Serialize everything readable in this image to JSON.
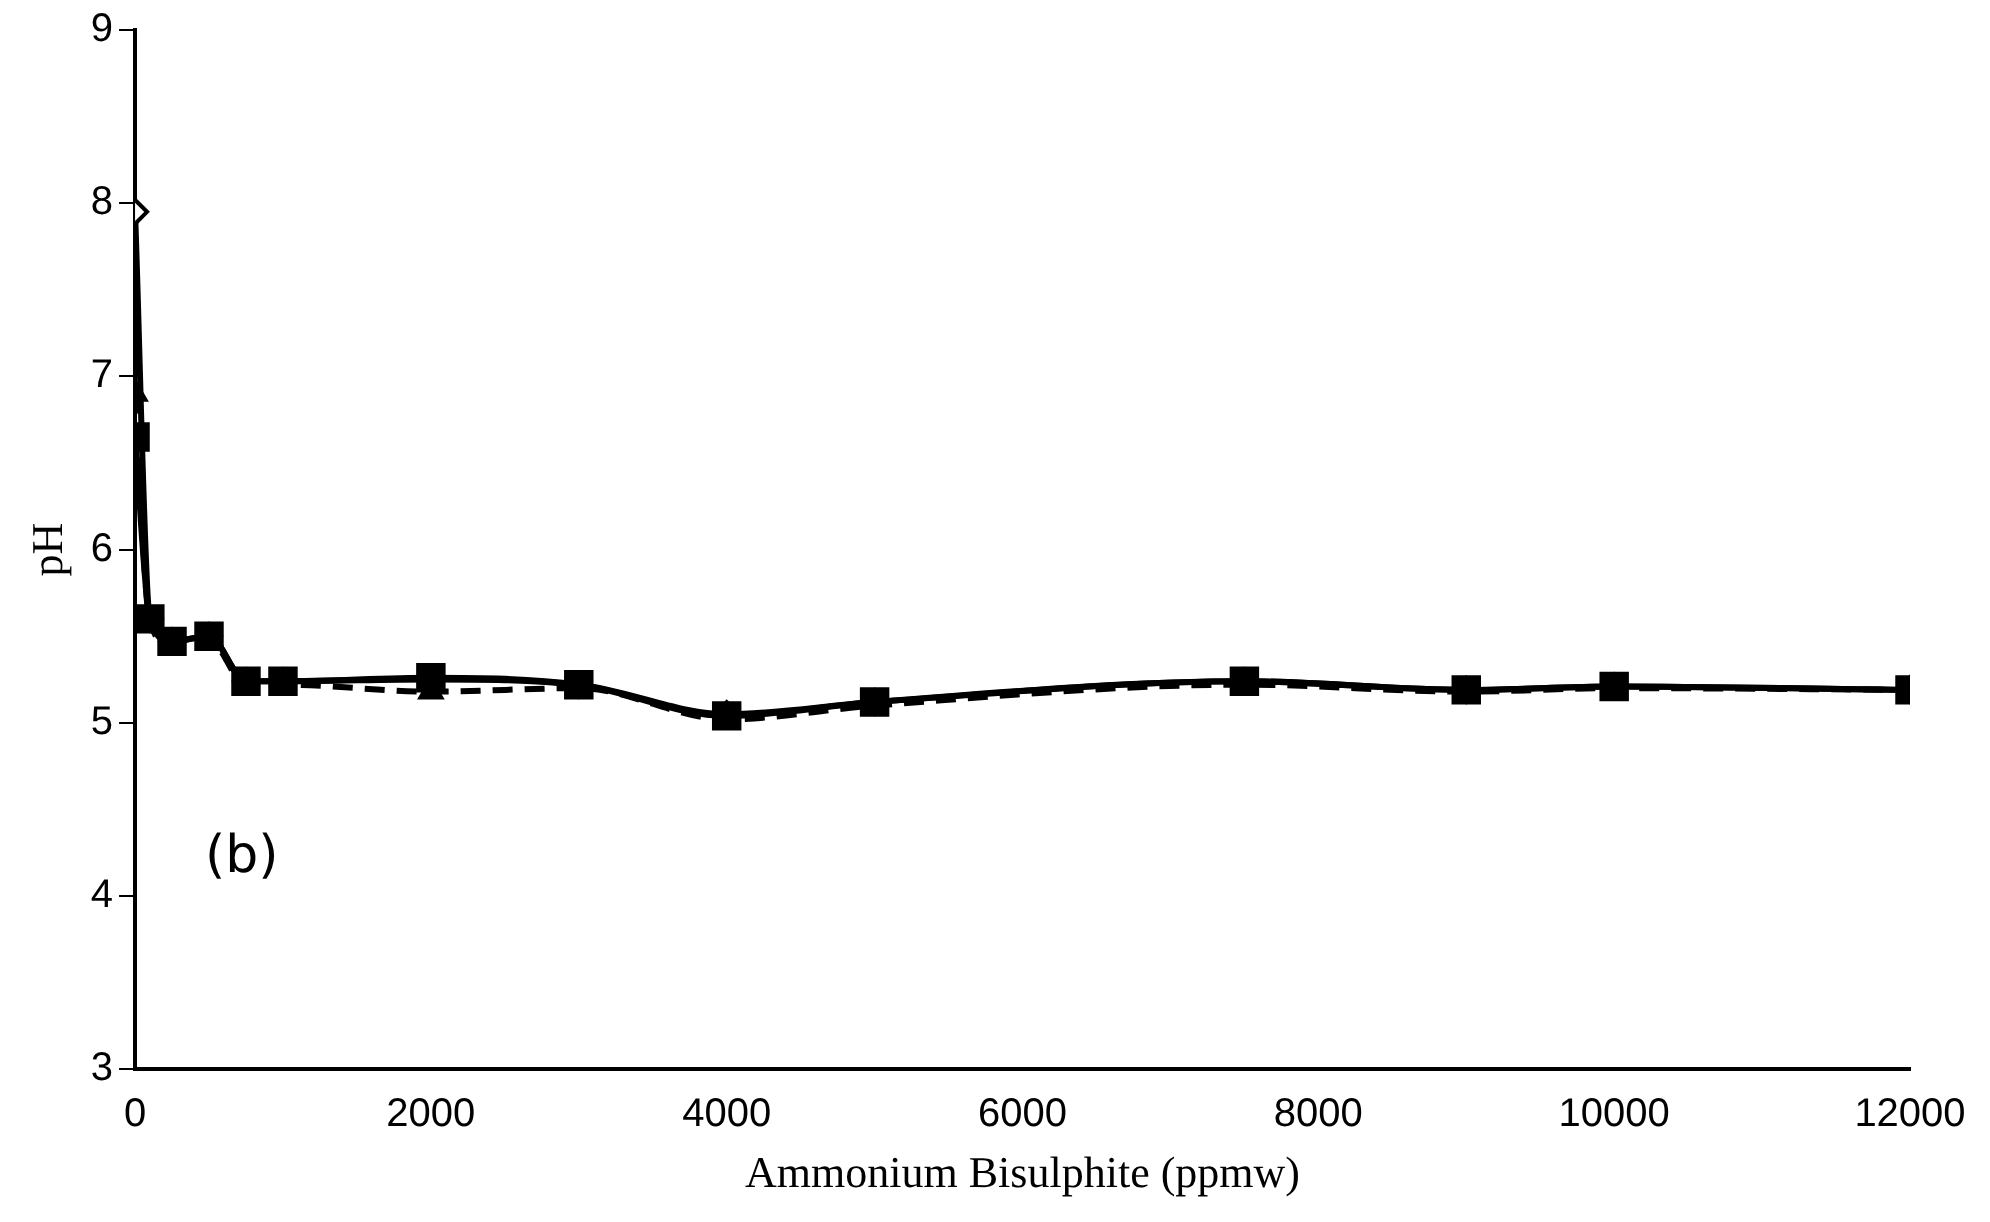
{
  "chart_data": {
    "type": "line",
    "xlabel": "Ammonium Bisulphite (ppmw)",
    "ylabel": "pH",
    "x": [
      0,
      100,
      250,
      500,
      750,
      1000,
      2000,
      3000,
      4000,
      5000,
      7500,
      9000,
      10000,
      12000
    ],
    "series": [
      {
        "color": "#000000",
        "marker": "diamond",
        "line_style": "solid",
        "values": [
          7.95,
          5.6,
          5.47,
          5.5,
          5.24,
          5.24,
          5.25,
          5.22,
          5.05,
          5.12,
          5.24,
          5.19,
          5.21,
          5.19
        ]
      },
      {
        "color": "#000000",
        "marker": "triangle",
        "line_style": "dashed",
        "values": [
          6.9,
          5.58,
          5.45,
          5.48,
          5.22,
          5.22,
          5.18,
          5.2,
          5.02,
          5.1,
          5.22,
          5.18,
          5.2,
          5.19
        ]
      },
      {
        "color": "#000000",
        "marker": "square",
        "line_style": "solid",
        "values": [
          6.65,
          5.6,
          5.47,
          5.5,
          5.24,
          5.24,
          5.26,
          5.22,
          5.04,
          5.12,
          5.24,
          5.19,
          5.21,
          5.19
        ]
      }
    ],
    "xlim": [
      0,
      12000
    ],
    "xticks": [
      0,
      2000,
      4000,
      6000,
      8000,
      10000,
      12000
    ],
    "ylim": [
      3,
      9
    ],
    "yticks": [
      3,
      4,
      5,
      6,
      7,
      8,
      9
    ],
    "grid": false,
    "legend": false,
    "annotations": [
      "(b)"
    ]
  }
}
